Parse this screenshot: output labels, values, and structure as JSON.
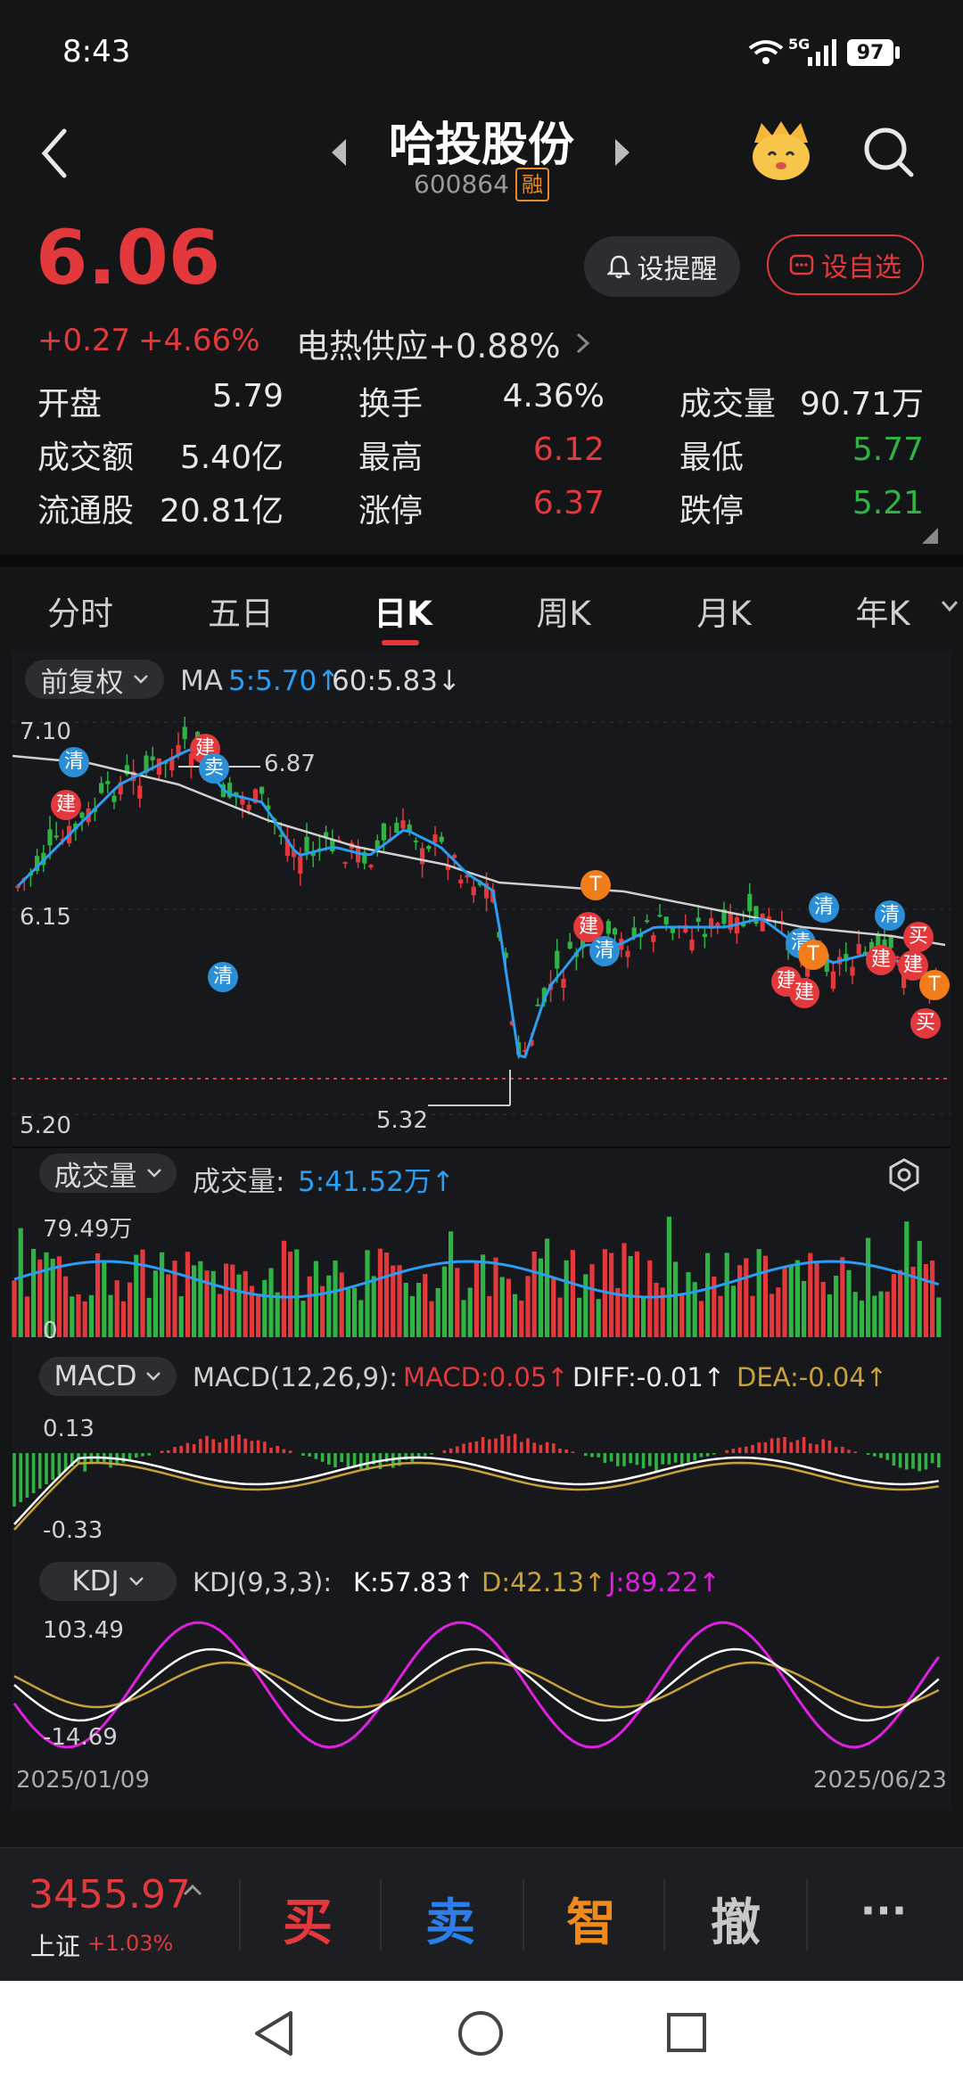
{
  "status_bar": {
    "time": "8:43",
    "network": "5G",
    "battery": "97"
  },
  "header": {
    "stock_name": "哈投股份",
    "stock_code": "600864",
    "margin_badge": "融"
  },
  "quote": {
    "price": "6.06",
    "change": "+0.27",
    "change_pct": "+4.66%",
    "sector": "电热供应+0.88%",
    "alert_button": "设提醒",
    "watch_button": "设自选",
    "stats": [
      {
        "label": "开盘",
        "value": "5.79",
        "color": "#e8e8e8"
      },
      {
        "label": "换手",
        "value": "4.36%",
        "color": "#e8e8e8"
      },
      {
        "label": "成交量",
        "value": "90.71万",
        "color": "#e8e8e8"
      },
      {
        "label": "成交额",
        "value": "5.40亿",
        "color": "#e8e8e8"
      },
      {
        "label": "最高",
        "value": "6.12",
        "color": "#e4393c"
      },
      {
        "label": "最低",
        "value": "5.77",
        "color": "#2fb344"
      },
      {
        "label": "流通股",
        "value": "20.81亿",
        "color": "#e8e8e8"
      },
      {
        "label": "涨停",
        "value": "6.37",
        "color": "#e4393c"
      },
      {
        "label": "跌停",
        "value": "5.21",
        "color": "#2fb344"
      }
    ]
  },
  "tabs": [
    "分时",
    "五日",
    "日K",
    "周K",
    "月K",
    "年K"
  ],
  "active_tab": "日K",
  "kline": {
    "adjust_label": "前复权",
    "ma_label": "MA",
    "ma5": "5:5.70↑",
    "ma60": "60:5.83↓",
    "y_top": "7.10",
    "y_mid": "6.15",
    "y_bottom": "5.20",
    "high_mark": "6.87",
    "low_mark": "5.32"
  },
  "volume": {
    "pill": "成交量",
    "label": "成交量:",
    "value": "5:41.52万↑",
    "top": "79.49万",
    "zero": "0"
  },
  "macd": {
    "pill": "MACD",
    "params": "MACD(12,26,9):",
    "macd": "MACD:0.05↑",
    "diff": "DIFF:-0.01↑",
    "dea": "DEA:-0.04↑",
    "top": "0.13",
    "bottom": "-0.33"
  },
  "kdj": {
    "pill": "KDJ",
    "params": "KDJ(9,3,3):",
    "k": "K:57.83↑",
    "d": "D:42.13↑",
    "j": "J:89.22↑",
    "top": "103.49",
    "bottom": "-14.69"
  },
  "dates": {
    "start": "2025/01/09",
    "end": "2025/06/23"
  },
  "markers": [
    {
      "text": "清",
      "color": "#2a8fd6"
    },
    {
      "text": "建",
      "color": "#e4393c"
    },
    {
      "text": "建",
      "color": "#e4393c"
    },
    {
      "text": "卖",
      "color": "#2a8fd6"
    },
    {
      "text": "清",
      "color": "#2a8fd6"
    },
    {
      "text": "T",
      "color": "#f07d1a"
    },
    {
      "text": "建",
      "color": "#e4393c"
    },
    {
      "text": "清",
      "color": "#2a8fd6"
    },
    {
      "text": "清",
      "color": "#2a8fd6"
    },
    {
      "text": "清",
      "color": "#2a8fd6"
    },
    {
      "text": "T",
      "color": "#f07d1a"
    },
    {
      "text": "建",
      "color": "#e4393c"
    },
    {
      "text": "建",
      "color": "#e4393c"
    },
    {
      "text": "清",
      "color": "#2a8fd6"
    },
    {
      "text": "建",
      "color": "#e4393c"
    },
    {
      "text": "建",
      "color": "#e4393c"
    },
    {
      "text": "买",
      "color": "#e4393c"
    },
    {
      "text": "T",
      "color": "#f07d1a"
    },
    {
      "text": "买",
      "color": "#e4393c"
    }
  ],
  "bottom_bar": {
    "index_value": "3455.97",
    "index_name": "上证",
    "index_change": "+1.03%",
    "buy": "买",
    "sell": "卖",
    "smart": "智",
    "cancel": "撤",
    "more": "···"
  },
  "colors": {
    "up": "#e4393c",
    "down": "#2fb344",
    "ma5": "#2a9df4",
    "ma60": "#cfcfcf",
    "dea": "#c9a13b",
    "j": "#e020e0"
  }
}
